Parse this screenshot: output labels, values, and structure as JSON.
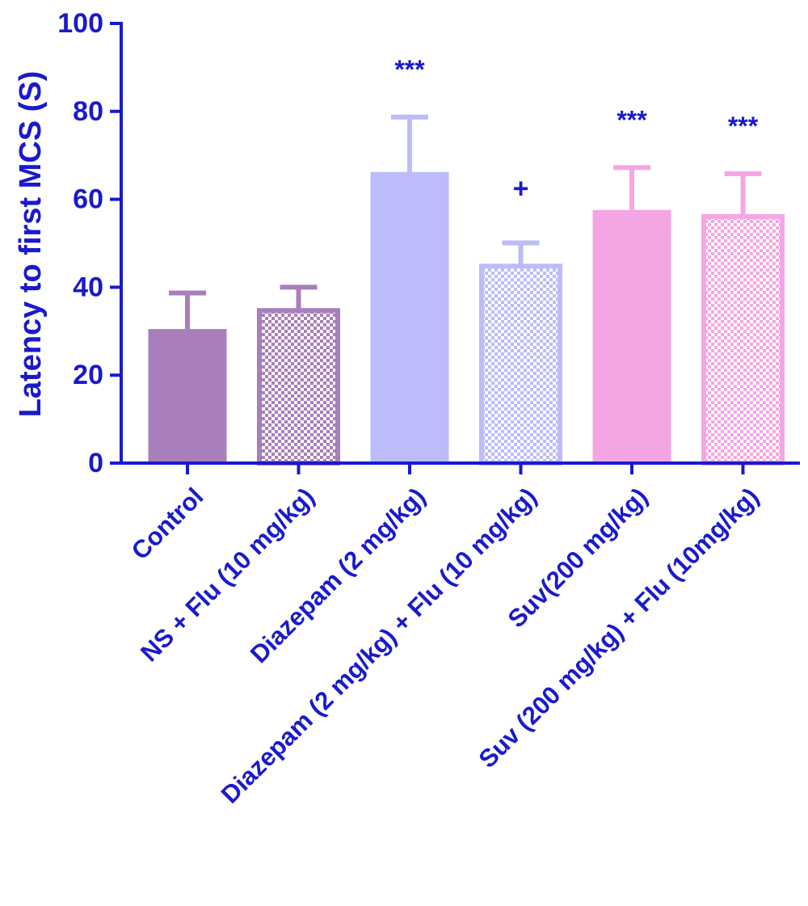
{
  "chart_data": {
    "type": "bar",
    "title": "",
    "xlabel": "",
    "ylabel": "Latency to first MCS (S)",
    "ylim": [
      0,
      100
    ],
    "yticks": [
      0,
      20,
      40,
      60,
      80,
      100
    ],
    "ytick_labels": [
      "0",
      "20",
      "40",
      "60",
      "80",
      "100"
    ],
    "categories": [
      "Control",
      "NS + Flu (10 mg/kg)",
      "Diazepam (2 mg/kg)",
      "Diazepam (2 mg/kg) + Flu (10 mg/kg)",
      "Suv(200 mg/kg)",
      "Suv (200 mg/kg) + Flu (10mg/kg)"
    ],
    "values": [
      30.5,
      34.7,
      66.2,
      44.8,
      57.6,
      56.1
    ],
    "errors": [
      8.2,
      5.3,
      12.5,
      5.3,
      9.6,
      9.7
    ],
    "annotations": [
      "",
      "",
      "***",
      "+",
      "***",
      "***"
    ],
    "bar_fill": [
      "solid",
      "checker",
      "solid",
      "checker",
      "solid",
      "checker"
    ],
    "bar_colors": [
      "#a97fbb",
      "#a97fbb",
      "#bcbcfa",
      "#bcbcfa",
      "#f4a6e4",
      "#f4a6e4"
    ],
    "axis_color": "#1a1acc",
    "label_color": "#1a1acc",
    "grid": false,
    "legend": "none"
  }
}
